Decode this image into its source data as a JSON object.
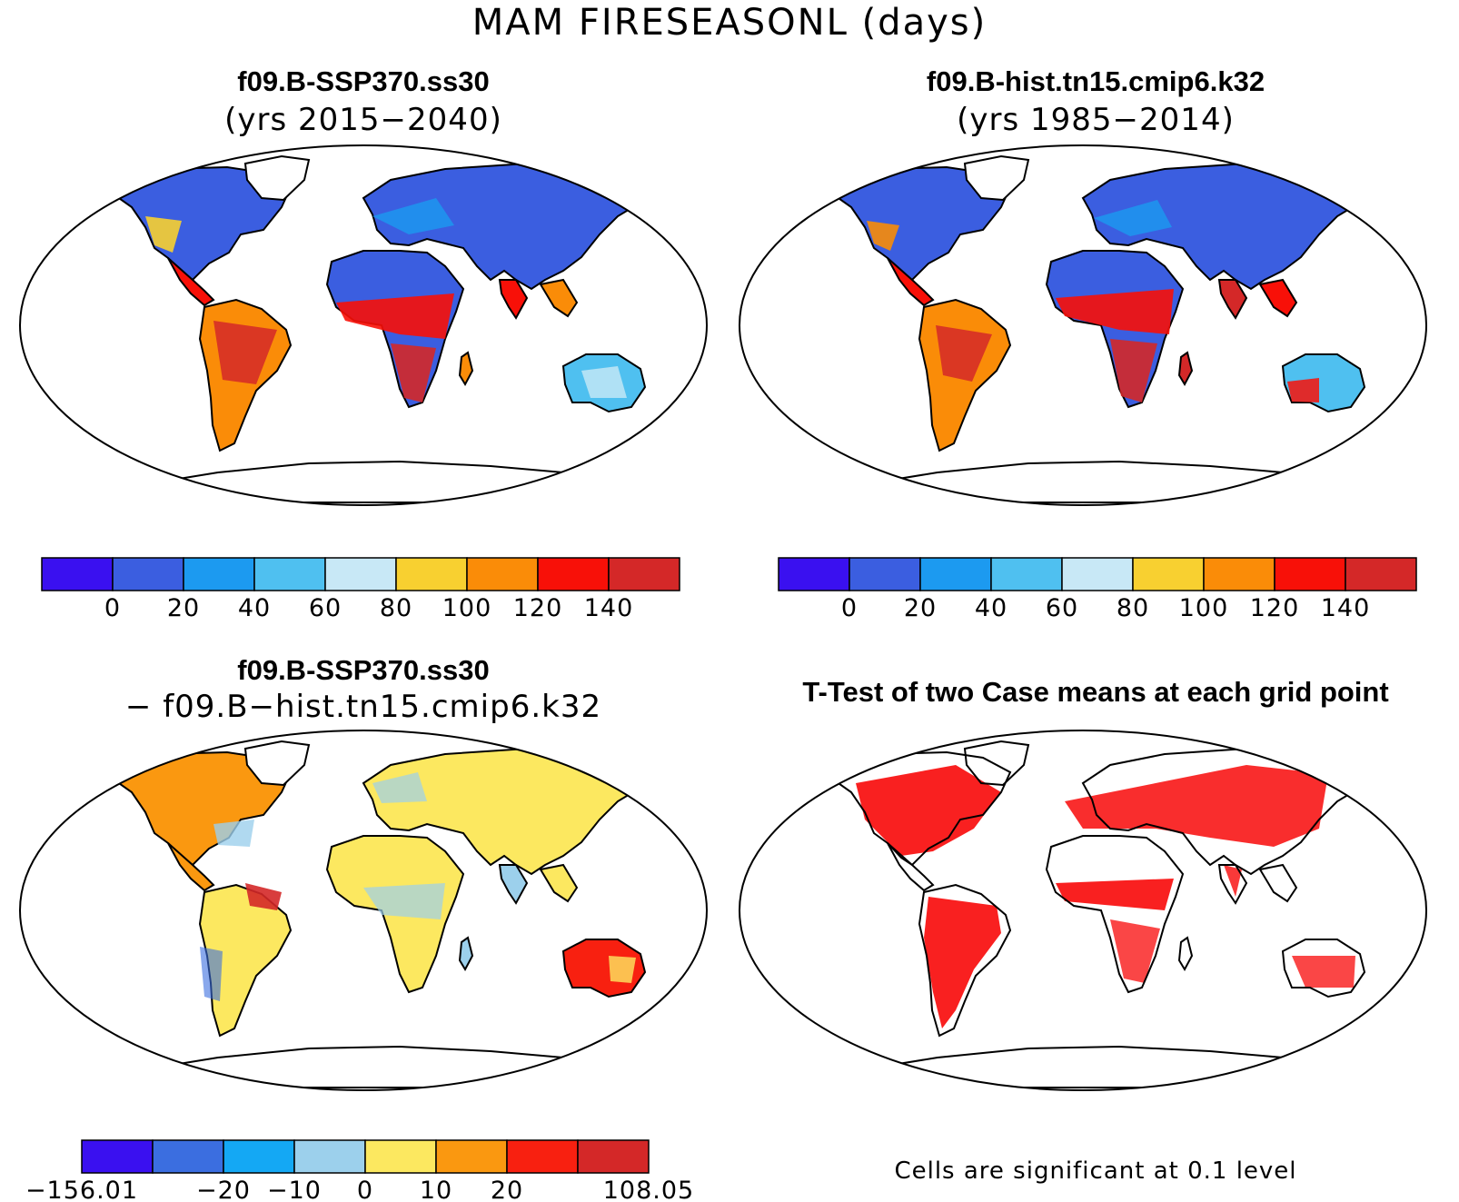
{
  "title": "MAM FIRESEASONL (days)",
  "panels": [
    {
      "title": "f09.B-SSP370.ss30",
      "subtitle": "(yrs 2015−2040)"
    },
    {
      "title": "f09.B-hist.tn15.cmip6.k32",
      "subtitle": "(yrs 1985−2014)"
    },
    {
      "title": "f09.B-SSP370.ss30",
      "subtitle": "− f09.B−hist.tn15.cmip6.k32"
    },
    {
      "title": "T-Test of two Case means at each grid point",
      "subtitle": ""
    }
  ],
  "colorbar_abs": {
    "colors": [
      "#3a10f0",
      "#3b5ee0",
      "#1c9af0",
      "#4fc0f0",
      "#c8e8f6",
      "#f8d030",
      "#fa8c08",
      "#f81008",
      "#d42828"
    ],
    "labels": [
      "0",
      "20",
      "40",
      "60",
      "80",
      "100",
      "120",
      "140"
    ]
  },
  "colorbar_diff": {
    "colors": [
      "#3a10f0",
      "#3b6ee0",
      "#14a8f4",
      "#9cd0ec",
      "#fce860",
      "#fa9810",
      "#f82010",
      "#d42828"
    ],
    "labels": [
      "−156.01",
      "−20",
      "−10",
      "0",
      "10",
      "20",
      "108.05"
    ]
  },
  "significance_note": "Cells are significant at 0.1 level",
  "colors": {
    "ocean": "#ffffff",
    "coast": "#000000",
    "significant": "#f80808"
  }
}
